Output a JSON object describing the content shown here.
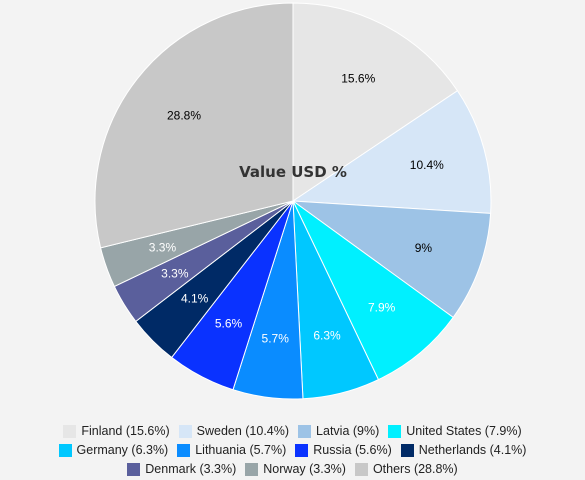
{
  "chart_data": {
    "type": "pie",
    "title": "Value USD %",
    "slices": [
      {
        "label": "Finland",
        "value": 15.6,
        "color": "#e6e6e6",
        "text_color": "#000000"
      },
      {
        "label": "Sweden",
        "value": 10.4,
        "color": "#d6e6f7",
        "text_color": "#000000"
      },
      {
        "label": "Latvia",
        "value": 9,
        "color": "#9dc3e6",
        "text_color": "#000000"
      },
      {
        "label": "United States",
        "value": 7.9,
        "color": "#00f0ff",
        "text_color": "#ffffff"
      },
      {
        "label": "Germany",
        "value": 6.3,
        "color": "#00c8ff",
        "text_color": "#ffffff"
      },
      {
        "label": "Lithuania",
        "value": 5.7,
        "color": "#0a8cff",
        "text_color": "#ffffff"
      },
      {
        "label": "Russia",
        "value": 5.6,
        "color": "#0a32ff",
        "text_color": "#ffffff"
      },
      {
        "label": "Netherlands",
        "value": 4.1,
        "color": "#002a66",
        "text_color": "#ffffff"
      },
      {
        "label": "Denmark",
        "value": 3.3,
        "color": "#5a5f9c",
        "text_color": "#ffffff"
      },
      {
        "label": "Norway",
        "value": 3.3,
        "color": "#98a5a8",
        "text_color": "#ffffff"
      },
      {
        "label": "Others",
        "value": 28.8,
        "color": "#c8c8c8",
        "text_color": "#000000"
      }
    ],
    "slice_labels": [
      "15.6%",
      "10.4%",
      "9%",
      "7.9%",
      "6.3%",
      "5.7%",
      "5.6%",
      "4.1%",
      "3.3%",
      "3.3%",
      "28.8%"
    ],
    "legend": {
      "placement": "bottom",
      "entries": [
        "Finland (15.6%)",
        "Sweden (10.4%)",
        "Latvia (9%)",
        "United States (7.9%)",
        "Germany (6.3%)",
        "Lithuania (5.7%)",
        "Russia (5.6%)",
        "Netherlands (4.1%)",
        "Denmark (3.3%)",
        "Norway (3.3%)",
        "Others (28.8%)"
      ]
    }
  }
}
